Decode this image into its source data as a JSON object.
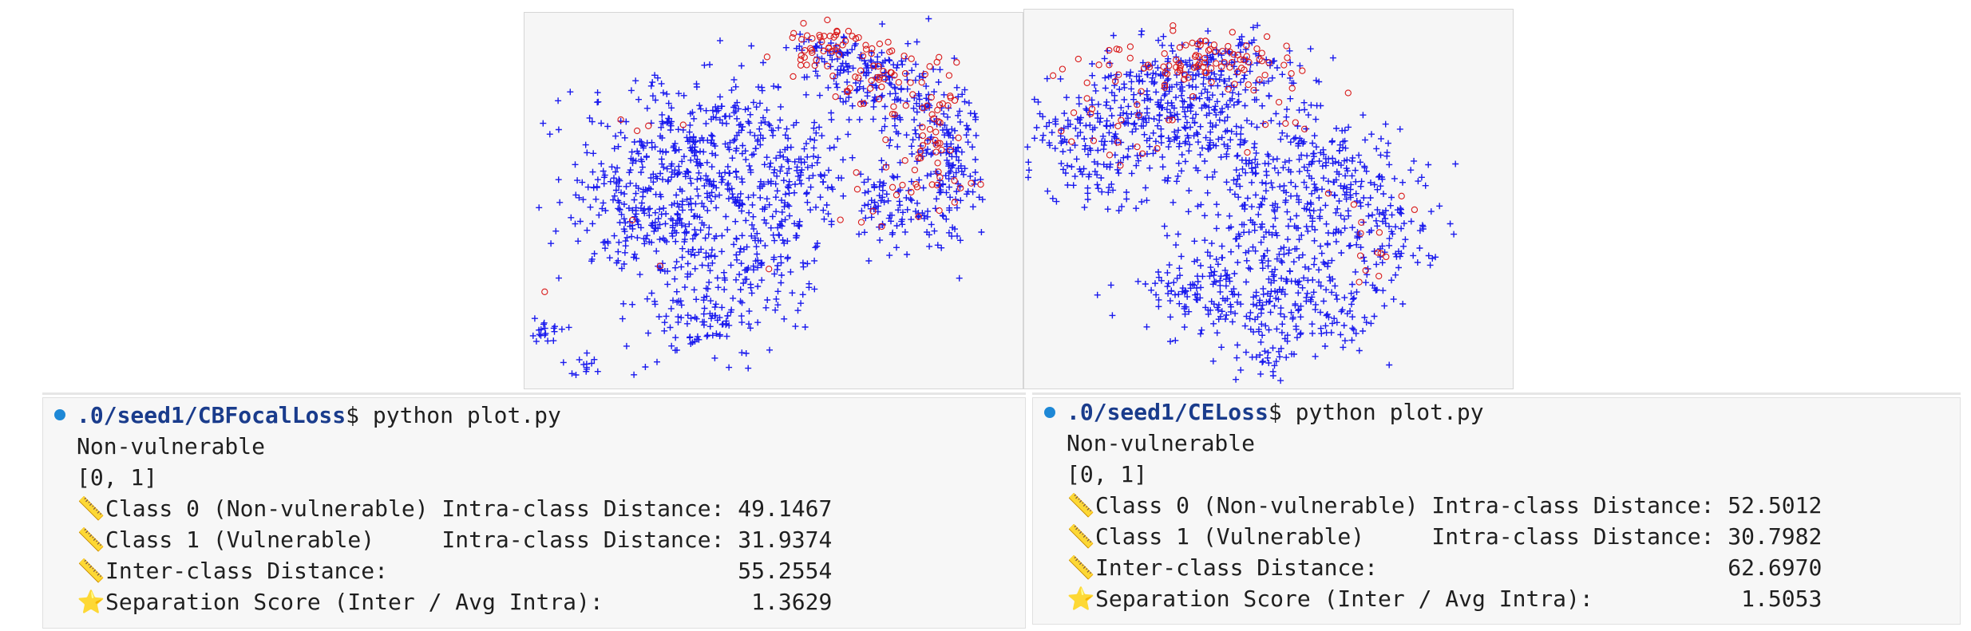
{
  "colors": {
    "class0": "#1a1aee",
    "class1": "#d91a1a",
    "prompt_dot": "#1e88d6",
    "path": "#1a3c8c"
  },
  "plots": {
    "left": {
      "class0_count": 1400,
      "class1_count": 160
    },
    "right": {
      "class0_count": 1350,
      "class1_count": 140
    }
  },
  "terminals": {
    "left": {
      "path": ".0/seed1/CBFocalLoss",
      "command": "$ python plot.py",
      "line1": "Non-vulnerable",
      "line2": "[0, 1]",
      "rows": [
        {
          "icon": "ruler-icon",
          "label": "Class 0 (Non-vulnerable) Intra-class Distance: 49.1467"
        },
        {
          "icon": "ruler-icon",
          "label": "Class 1 (Vulnerable)     Intra-class Distance: 31.9374"
        },
        {
          "icon": "ruler-icon",
          "label": "Inter-class Distance:                          55.2554"
        },
        {
          "icon": "star-icon",
          "label": "Separation Score (Inter / Avg Intra):           1.3629"
        }
      ]
    },
    "right": {
      "path": ".0/seed1/CELoss",
      "command": "$ python plot.py",
      "line1": "Non-vulnerable",
      "line2": "[0, 1]",
      "rows": [
        {
          "icon": "ruler-icon",
          "label": "Class 0 (Non-vulnerable) Intra-class Distance: 52.5012"
        },
        {
          "icon": "ruler-icon",
          "label": "Class 1 (Vulnerable)     Intra-class Distance: 30.7982"
        },
        {
          "icon": "ruler-icon",
          "label": "Inter-class Distance:                          62.6970"
        },
        {
          "icon": "star-icon",
          "label": "Separation Score (Inter / Avg Intra):           1.5053"
        }
      ]
    }
  }
}
